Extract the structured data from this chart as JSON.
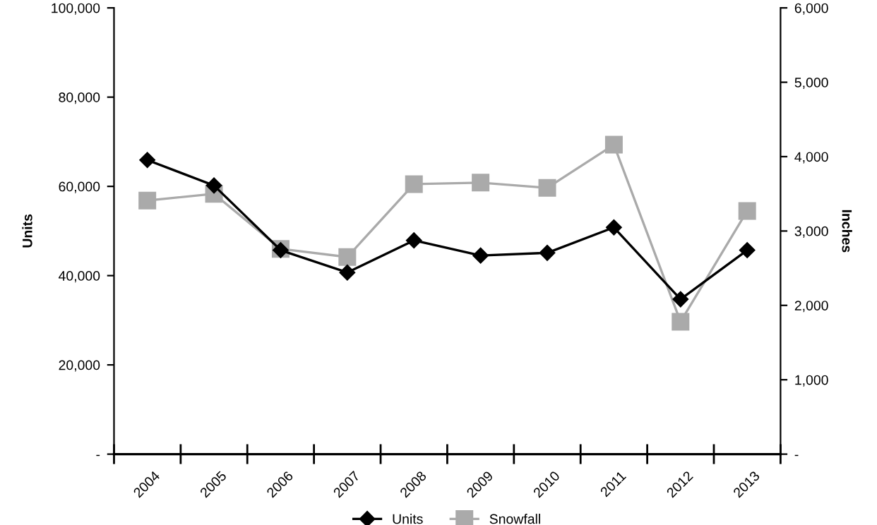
{
  "chart_data": {
    "type": "line",
    "ylabel": "Units",
    "y2label": "Inches",
    "categories": [
      "2004",
      "2005",
      "2006",
      "2007",
      "2008",
      "2009",
      "2010",
      "2011",
      "2012",
      "2013"
    ],
    "series": [
      {
        "name": "Units",
        "color": "#000000",
        "marker": "diamond",
        "values": [
          65900,
          60200,
          45700,
          40700,
          47900,
          44500,
          45100,
          50800,
          34700,
          45700
        ]
      },
      {
        "name": "Snowfall",
        "color": "#aaaaaa",
        "marker": "square",
        "axis": "y2",
        "values": [
          3410,
          3500,
          2760,
          2650,
          3630,
          3650,
          3580,
          4160,
          1780,
          3270
        ]
      }
    ],
    "ylim": [
      0,
      100000
    ],
    "yticks": [
      {
        "value": 0,
        "label": "-"
      },
      {
        "value": 20000,
        "label": "20,000"
      },
      {
        "value": 40000,
        "label": "40,000"
      },
      {
        "value": 60000,
        "label": "60,000"
      },
      {
        "value": 80000,
        "label": "80,000"
      },
      {
        "value": 100000,
        "label": "100,000"
      }
    ],
    "y2lim": [
      0,
      6000
    ],
    "y2ticks": [
      {
        "value": 0,
        "label": "-"
      },
      {
        "value": 1000,
        "label": "1,000"
      },
      {
        "value": 2000,
        "label": "2,000"
      },
      {
        "value": 3000,
        "label": "3,000"
      },
      {
        "value": 4000,
        "label": "4,000"
      },
      {
        "value": 5000,
        "label": "5,000"
      },
      {
        "value": 6000,
        "label": "6,000"
      }
    ],
    "grid": false,
    "legend": "bottom"
  }
}
